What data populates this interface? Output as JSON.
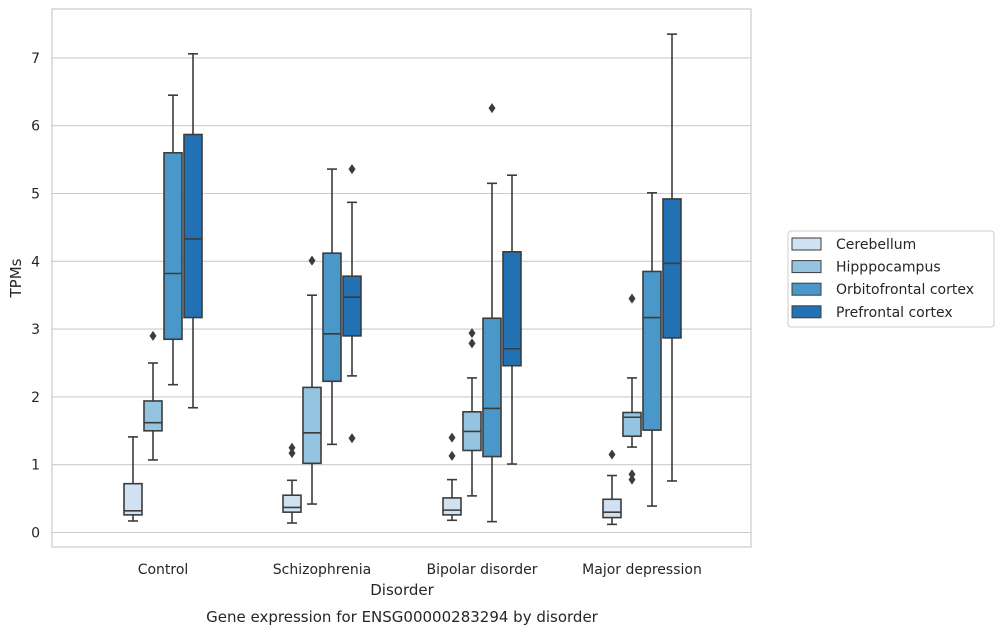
{
  "chart_data": {
    "type": "box",
    "title": "",
    "caption": "Gene expression for ENSG00000283294 by disorder",
    "xlabel": "Disorder",
    "ylabel": "TPMs",
    "ylim": [
      -0.22,
      7.72
    ],
    "yticks": [
      0,
      1,
      2,
      3,
      4,
      5,
      6,
      7
    ],
    "grid": true,
    "legend_position": "right",
    "categories": [
      "Control",
      "Schizophrenia",
      "Bipolar disorder",
      "Major depression"
    ],
    "series": [
      {
        "name": "Cerebellum",
        "color": "#d0e1f2",
        "boxes": [
          {
            "whisker_low": 0.17,
            "q1": 0.26,
            "median": 0.32,
            "q3": 0.72,
            "whisker_high": 1.41,
            "outliers": []
          },
          {
            "whisker_low": 0.14,
            "q1": 0.3,
            "median": 0.37,
            "q3": 0.55,
            "whisker_high": 0.77,
            "outliers": [
              1.17,
              1.25
            ]
          },
          {
            "whisker_low": 0.18,
            "q1": 0.26,
            "median": 0.33,
            "q3": 0.51,
            "whisker_high": 0.78,
            "outliers": [
              1.13,
              1.4
            ]
          },
          {
            "whisker_low": 0.12,
            "q1": 0.22,
            "median": 0.3,
            "q3": 0.49,
            "whisker_high": 0.84,
            "outliers": [
              1.15
            ]
          }
        ]
      },
      {
        "name": "Hipppocampus",
        "color": "#94c4df",
        "boxes": [
          {
            "whisker_low": 1.07,
            "q1": 1.5,
            "median": 1.62,
            "q3": 1.94,
            "whisker_high": 2.5,
            "outliers": [
              2.9
            ]
          },
          {
            "whisker_low": 0.42,
            "q1": 1.02,
            "median": 1.47,
            "q3": 2.14,
            "whisker_high": 3.5,
            "outliers": [
              4.01
            ]
          },
          {
            "whisker_low": 0.54,
            "q1": 1.21,
            "median": 1.49,
            "q3": 1.78,
            "whisker_high": 2.28,
            "outliers": [
              2.79,
              2.94
            ]
          },
          {
            "whisker_low": 1.26,
            "q1": 1.42,
            "median": 1.7,
            "q3": 1.77,
            "whisker_high": 2.28,
            "outliers": [
              0.78,
              0.86,
              3.45
            ]
          }
        ]
      },
      {
        "name": "Orbitofrontal cortex",
        "color": "#4a98c9",
        "boxes": [
          {
            "whisker_low": 2.18,
            "q1": 2.85,
            "median": 3.82,
            "q3": 5.6,
            "whisker_high": 6.45,
            "outliers": []
          },
          {
            "whisker_low": 1.3,
            "q1": 2.23,
            "median": 2.93,
            "q3": 4.12,
            "whisker_high": 5.36,
            "outliers": []
          },
          {
            "whisker_low": 0.16,
            "q1": 1.12,
            "median": 1.83,
            "q3": 3.16,
            "whisker_high": 5.15,
            "outliers": [
              6.26
            ]
          },
          {
            "whisker_low": 0.39,
            "q1": 1.51,
            "median": 3.17,
            "q3": 3.85,
            "whisker_high": 5.01,
            "outliers": []
          }
        ]
      },
      {
        "name": "Prefrontal cortex",
        "color": "#2271b5",
        "boxes": [
          {
            "whisker_low": 1.84,
            "q1": 3.17,
            "median": 4.33,
            "q3": 5.87,
            "whisker_high": 7.06,
            "outliers": []
          },
          {
            "whisker_low": 2.31,
            "q1": 2.9,
            "median": 3.47,
            "q3": 3.78,
            "whisker_high": 4.87,
            "outliers": [
              1.39,
              5.36
            ]
          },
          {
            "whisker_low": 1.01,
            "q1": 2.46,
            "median": 2.71,
            "q3": 4.14,
            "whisker_high": 5.27,
            "outliers": []
          },
          {
            "whisker_low": 0.76,
            "q1": 2.87,
            "median": 3.97,
            "q3": 4.92,
            "whisker_high": 7.35,
            "outliers": []
          }
        ]
      }
    ]
  }
}
